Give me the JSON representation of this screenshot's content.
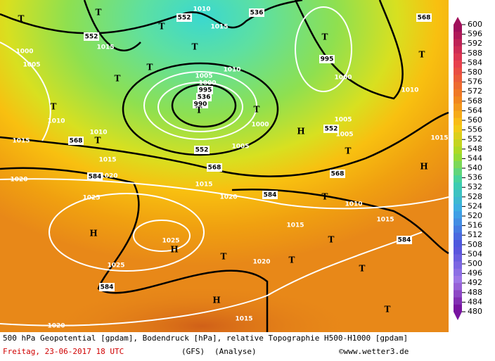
{
  "map": {
    "labels": [
      "T",
      "T",
      "552",
      "1010",
      "536",
      "568",
      "T",
      "1015",
      "552",
      "T",
      "1015",
      "1000",
      "T",
      "T",
      "995",
      "1005",
      "T",
      "1010",
      "T",
      "1000",
      "1005",
      "1000",
      "995",
      "536",
      "990",
      "T",
      "1010",
      "T",
      "T",
      "1010",
      "1000",
      "1005",
      "H",
      "552",
      "1005",
      "568",
      "T",
      "1010",
      "1015",
      "1015",
      "1005",
      "552",
      "T",
      "1015",
      "568",
      "H",
      "584",
      "1020",
      "568",
      "1020",
      "1015",
      "1020",
      "584",
      "T",
      "1025",
      "1010",
      "1015",
      "1015",
      "H",
      "1025",
      "584",
      "T",
      "H",
      "T",
      "1020",
      "T",
      "1025",
      "584",
      "T",
      "H",
      "T",
      "1015",
      "1020"
    ]
  },
  "colorbar": {
    "ticks": [
      600,
      596,
      592,
      588,
      584,
      580,
      576,
      572,
      568,
      564,
      560,
      556,
      552,
      548,
      544,
      540,
      536,
      532,
      528,
      524,
      520,
      516,
      512,
      508,
      504,
      500,
      496,
      492,
      488,
      484,
      480
    ]
  },
  "footer": {
    "caption": "500 hPa Geopotential [gpdam], Bodendruck [hPa], relative Topographie H500-H1000 [gpdam]",
    "date": "Freitag, 23-06-2017  18 UTC",
    "model": "(GFS)",
    "analysis": "(Analyse)",
    "copyright": "©www.wetter3.de"
  }
}
